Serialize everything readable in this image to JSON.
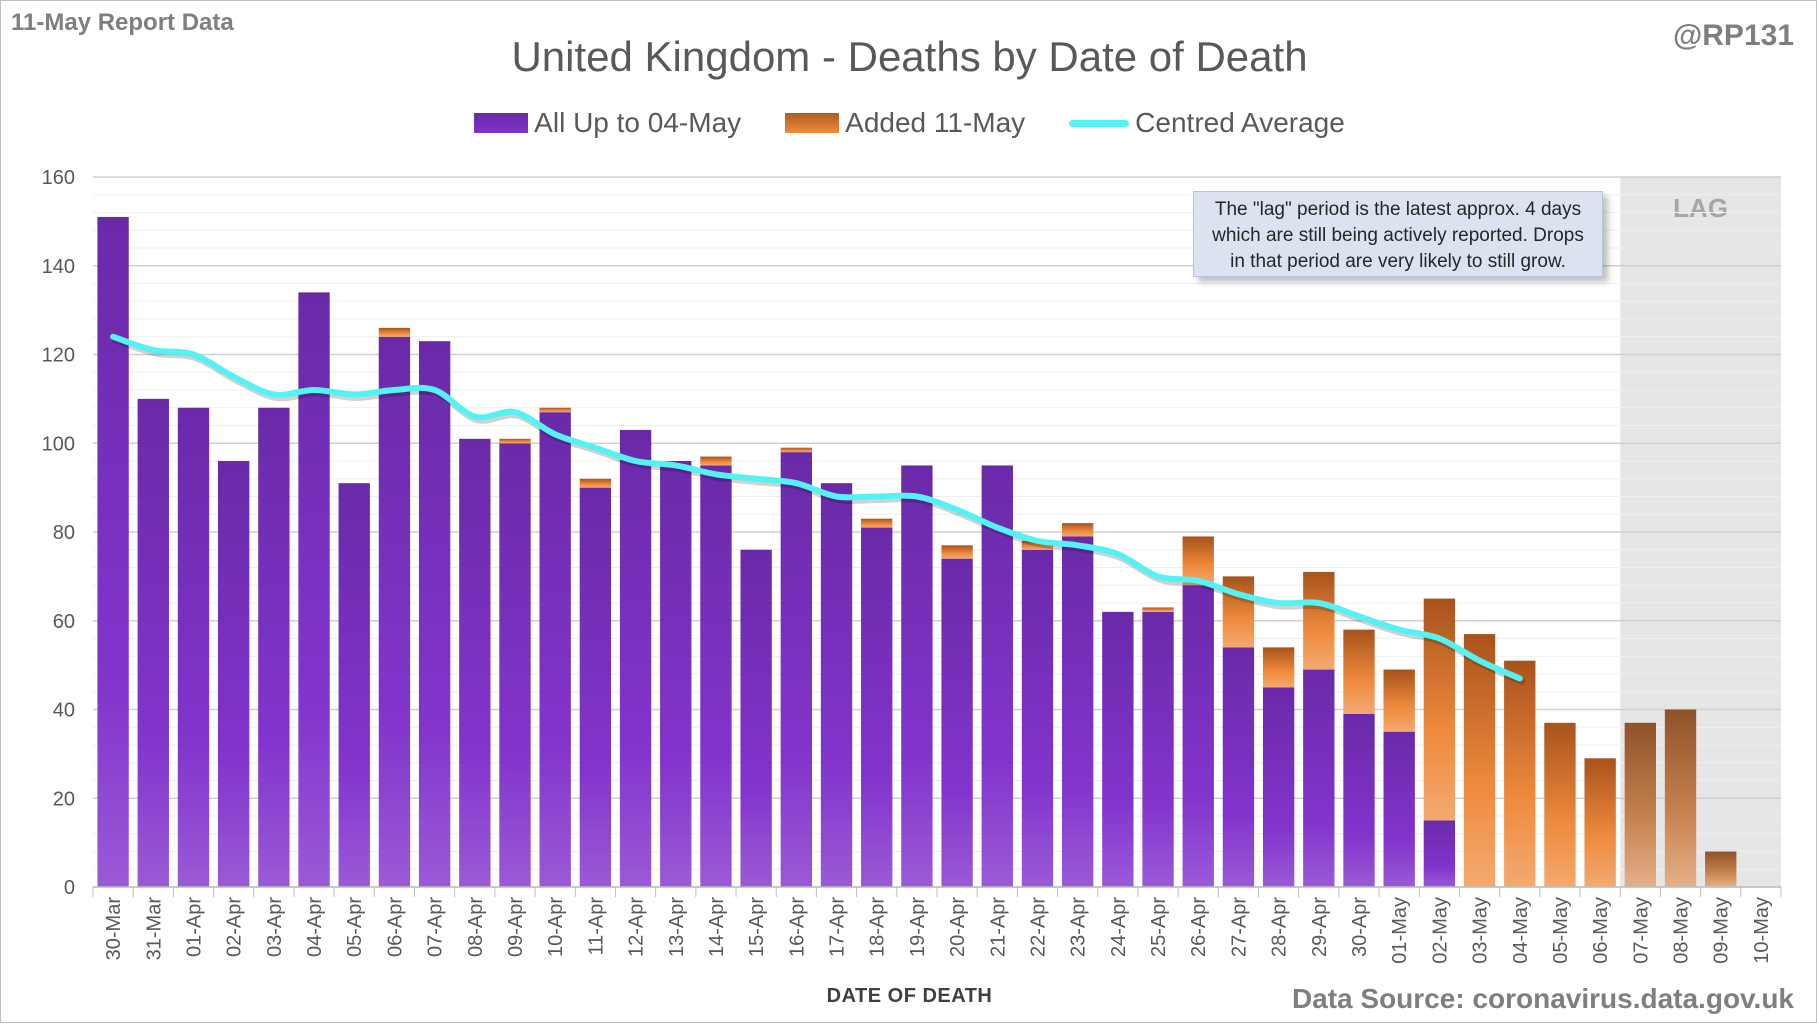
{
  "header": {
    "report_label": "11-May Report Data",
    "handle": "@RP131",
    "title": "United Kingdom - Deaths by Date of Death"
  },
  "legend": {
    "series1": "All Up to 04-May",
    "series2": "Added 11-May",
    "series3": "Centred Average"
  },
  "callout": {
    "line1": "The \"lag\" period is the latest approx. 4 days",
    "line2": "which are still being actively reported. Drops",
    "line3": "in that period are very likely to still grow."
  },
  "lag_label": "LAG",
  "footer": {
    "xlabel": "DATE OF DEATH",
    "source": "Data Source: coronavirus.data.gov.uk"
  },
  "colors": {
    "purple_top": "#6a2aa8",
    "purple_bottom": "#9650d8",
    "orange_top": "#b05c20",
    "orange_bottom": "#f2a060",
    "lag_orange_top": "#9a5a2c",
    "lag_orange_bottom": "#e0a070",
    "average_line": "#55f2f4",
    "lag_shade": "#e6e6e6",
    "grid": "#d9d9d9"
  },
  "chart_data": {
    "type": "bar",
    "stacked": true,
    "categories": [
      "30-Mar",
      "31-Mar",
      "01-Apr",
      "02-Apr",
      "03-Apr",
      "04-Apr",
      "05-Apr",
      "06-Apr",
      "07-Apr",
      "08-Apr",
      "09-Apr",
      "10-Apr",
      "11-Apr",
      "12-Apr",
      "13-Apr",
      "14-Apr",
      "15-Apr",
      "16-Apr",
      "17-Apr",
      "18-Apr",
      "19-Apr",
      "20-Apr",
      "21-Apr",
      "22-Apr",
      "23-Apr",
      "24-Apr",
      "25-Apr",
      "26-Apr",
      "27-Apr",
      "28-Apr",
      "29-Apr",
      "30-Apr",
      "01-May",
      "02-May",
      "03-May",
      "04-May",
      "05-May",
      "06-May",
      "07-May",
      "08-May",
      "09-May",
      "10-May"
    ],
    "series": [
      {
        "name": "All Up to 04-May",
        "values": [
          151,
          110,
          108,
          96,
          108,
          134,
          91,
          124,
          123,
          101,
          100,
          107,
          90,
          103,
          96,
          95,
          76,
          98,
          91,
          81,
          95,
          74,
          95,
          76,
          79,
          62,
          62,
          68,
          54,
          45,
          49,
          39,
          35,
          15,
          0,
          0,
          0,
          0,
          0,
          0,
          0,
          0
        ]
      },
      {
        "name": "Added 11-May",
        "values": [
          0,
          0,
          0,
          0,
          0,
          0,
          0,
          2,
          0,
          0,
          1,
          1,
          2,
          0,
          0,
          2,
          0,
          1,
          0,
          2,
          0,
          3,
          0,
          2,
          3,
          0,
          1,
          11,
          16,
          9,
          22,
          19,
          14,
          50,
          57,
          51,
          37,
          29,
          37,
          40,
          8,
          0
        ]
      },
      {
        "name": "Centred Average",
        "type": "line",
        "values": [
          124,
          121,
          120,
          115,
          111,
          112,
          111,
          112,
          112,
          106,
          107,
          102,
          99,
          96,
          95,
          93,
          92,
          91,
          88,
          88,
          88,
          85,
          81,
          78,
          77,
          75,
          70,
          69,
          66,
          64,
          64,
          61,
          58,
          56,
          51,
          47,
          null,
          null,
          null,
          null,
          null,
          null
        ]
      }
    ],
    "ylim": [
      0,
      160
    ],
    "yticks": [
      0,
      20,
      40,
      60,
      80,
      100,
      120,
      140,
      160
    ],
    "xlabel": "DATE OF DEATH",
    "lag_region": [
      "07-May",
      "10-May"
    ],
    "grid": true,
    "legend_position": "top-center"
  }
}
